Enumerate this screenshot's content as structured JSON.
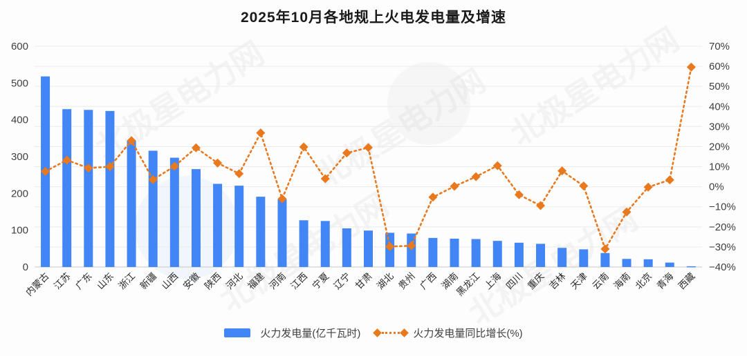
{
  "title": "2025年10月各地规上火电发电量及增速",
  "watermark": "北极星电力网",
  "colors": {
    "bar": "#4285F4",
    "line": "#E8791E",
    "grid": "#ebebeb",
    "axis_line": "#c8c8c8",
    "tick_text": "#3f3f3f",
    "xlabel_text": "#2b2b2b",
    "title_text": "#1a1a1a",
    "legend_text": "#3f3f3f"
  },
  "chart_data": {
    "type": "combo-bar-line",
    "title": "2025年10月各地规上火电发电量及增速",
    "categories": [
      "内蒙古",
      "江苏",
      "广东",
      "山东",
      "浙江",
      "新疆",
      "山西",
      "安徽",
      "陕西",
      "河北",
      "福建",
      "河南",
      "江西",
      "宁夏",
      "辽宁",
      "甘肃",
      "湖北",
      "贵州",
      "广西",
      "湖南",
      "黑龙江",
      "上海",
      "四川",
      "重庆",
      "吉林",
      "天津",
      "云南",
      "海南",
      "北京",
      "青海",
      "西藏"
    ],
    "series": [
      {
        "name": "火力发电量(亿千瓦时)",
        "type": "bar",
        "axis": "left",
        "values": [
          518,
          429,
          427,
          424,
          344,
          316,
          297,
          266,
          226,
          221,
          191,
          184,
          127,
          125,
          105,
          99,
          93,
          91,
          79,
          77,
          76,
          71,
          66,
          63,
          52,
          48,
          38,
          22,
          21,
          12,
          2
        ]
      },
      {
        "name": "火力发电量同比增长(%)",
        "type": "line",
        "axis": "right",
        "values": [
          7.6,
          13.3,
          9.3,
          10.0,
          23.0,
          3.5,
          10.2,
          19.4,
          11.8,
          6.5,
          26.8,
          -6.0,
          19.8,
          4.0,
          16.8,
          19.5,
          -29.8,
          -29.4,
          -5.2,
          0.2,
          5.0,
          10.5,
          -4.0,
          -9.4,
          7.9,
          0.4,
          -31.0,
          -12.6,
          -0.2,
          3.4,
          59.6
        ]
      }
    ],
    "left_axis": {
      "range": [
        0,
        600
      ],
      "ticks": [
        0,
        100,
        200,
        300,
        400,
        500,
        600
      ],
      "labels": [
        "0",
        "100",
        "200",
        "300",
        "400",
        "500",
        "600"
      ]
    },
    "right_axis": {
      "range": [
        -40,
        70
      ],
      "ticks": [
        -40,
        -30,
        -20,
        -10,
        0,
        10,
        20,
        30,
        40,
        50,
        60,
        70
      ],
      "labels": [
        "−40%",
        "−30%",
        "−20%",
        "−10%",
        "0%",
        "10%",
        "20%",
        "30%",
        "40%",
        "50%",
        "60%",
        "70%"
      ]
    },
    "grid": true,
    "legend_position": "bottom"
  }
}
